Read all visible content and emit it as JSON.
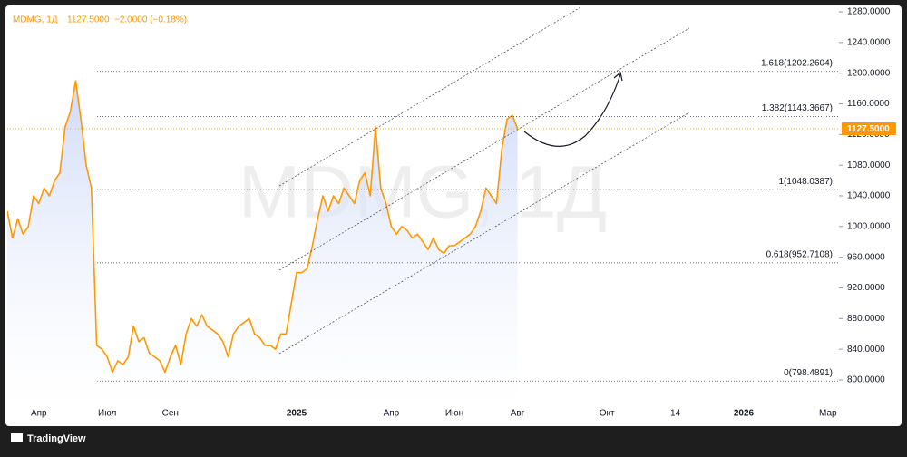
{
  "header": {
    "symbol": "MDMG, 1Д",
    "change": "−2.0000 (−0.18%)",
    "brand": "TradingView"
  },
  "chart_data": {
    "type": "line",
    "watermark": "MDMG, 1Д",
    "categories": [
      null,
      null,
      null,
      null,
      null,
      null,
      "Апр",
      null,
      null,
      null,
      null,
      null,
      null,
      null,
      null,
      null,
      null,
      null,
      null,
      "Июл",
      null,
      null,
      null,
      null,
      null,
      null,
      null,
      null,
      null,
      null,
      null,
      "Сен",
      null,
      null,
      null,
      null,
      null,
      null,
      null,
      null,
      null,
      null,
      null,
      null,
      null,
      null,
      null,
      null,
      null,
      null,
      null,
      null,
      null,
      null,
      null,
      "2025",
      null,
      null,
      null,
      null,
      null,
      null,
      null,
      null,
      null,
      null,
      null,
      null,
      null,
      null,
      null,
      null,
      null,
      "Апр",
      null,
      null,
      null,
      null,
      null,
      null,
      null,
      null,
      null,
      null,
      null,
      "Июн",
      null,
      null,
      null,
      null,
      null,
      null,
      null,
      null,
      null,
      null,
      null,
      "Авг",
      null,
      null,
      null,
      null,
      null,
      null,
      null,
      null,
      null,
      null,
      null,
      null,
      null,
      null,
      null,
      null,
      "Окт",
      null,
      null,
      null,
      null,
      null,
      null,
      null,
      null,
      null,
      null,
      null,
      null,
      "14",
      null,
      null,
      null,
      null,
      null,
      null,
      null,
      null,
      null,
      null,
      null,
      null,
      "2026",
      null,
      null,
      null,
      null,
      null,
      null,
      null,
      null,
      null,
      null,
      null,
      null,
      null,
      null,
      null,
      "Мар"
    ],
    "series": [
      {
        "color": "#ff9800",
        "values": [
          1020,
          985,
          1010,
          990,
          1000,
          1040,
          1030,
          1050,
          1040,
          1060,
          1070,
          1130,
          1150,
          1190,
          1140,
          1080,
          1050,
          845,
          840,
          830,
          810,
          825,
          820,
          830,
          870,
          850,
          855,
          835,
          830,
          825,
          810,
          830,
          845,
          820,
          860,
          880,
          870,
          885,
          870,
          865,
          860,
          850,
          830,
          860,
          870,
          875,
          880,
          860,
          855,
          845,
          845,
          840,
          860,
          860,
          900,
          940,
          940,
          945,
          975,
          1010,
          1040,
          1020,
          1040,
          1030,
          1050,
          1040,
          1030,
          1060,
          1070,
          1040,
          1130,
          1050,
          1030,
          1000,
          990,
          1000,
          995,
          985,
          990,
          980,
          970,
          985,
          970,
          965,
          975,
          975,
          980,
          985,
          990,
          1000,
          1020,
          1050,
          1040,
          1030,
          1100,
          1140,
          1145,
          1127.5,
          null,
          null,
          null,
          null,
          null,
          null,
          null,
          null,
          null,
          null,
          null,
          null,
          null,
          null,
          null,
          null,
          null,
          null,
          null,
          null,
          null,
          null,
          null,
          null,
          null,
          null,
          null,
          null,
          null,
          null,
          null,
          null,
          null,
          null,
          null,
          null,
          null,
          null,
          null,
          null,
          null,
          null,
          null,
          null,
          null,
          null,
          null,
          null,
          null,
          null,
          null,
          null,
          null,
          null,
          null,
          null,
          null,
          null,
          null
        ]
      }
    ],
    "last_price_label": "1127.5000",
    "ylim": [
      800,
      1280
    ],
    "yticks": [
      {
        "value": 800,
        "label": "800.0000"
      },
      {
        "value": 840,
        "label": "840.0000"
      },
      {
        "value": 880,
        "label": "880.0000"
      },
      {
        "value": 920,
        "label": "920.0000"
      },
      {
        "value": 960,
        "label": "960.0000"
      },
      {
        "value": 1000,
        "label": "1000.0000"
      },
      {
        "value": 1040,
        "label": "1040.0000"
      },
      {
        "value": 1080,
        "label": "1080.0000"
      },
      {
        "value": 1120,
        "label": "1120.0000"
      },
      {
        "value": 1160,
        "label": "1160.0000"
      },
      {
        "value": 1200,
        "label": "1200.0000"
      },
      {
        "value": 1240,
        "label": "1240.0000"
      },
      {
        "value": 1280,
        "label": "1280.0000"
      }
    ],
    "fib_levels": [
      {
        "value": 1202.2604,
        "label": "1.618(1202.2604)"
      },
      {
        "value": 1143.3667,
        "label": "1.382(1143.3667)"
      },
      {
        "value": 1048.0387,
        "label": "1(1048.0387)"
      },
      {
        "value": 952.7108,
        "label": "0.618(952.7108)"
      },
      {
        "value": 798.4891,
        "label": "0(798.4891)"
      }
    ]
  }
}
